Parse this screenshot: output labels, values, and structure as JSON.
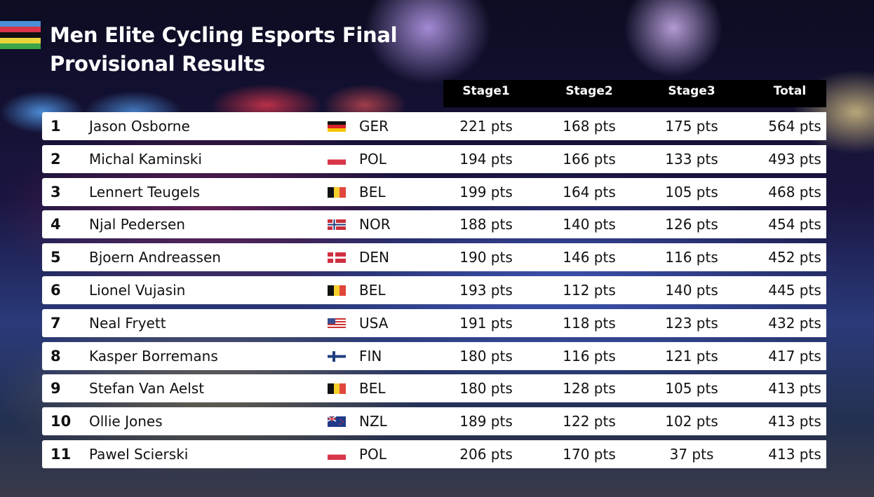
{
  "title_line1": "Men Elite Cycling Esports Final",
  "title_line2": "Provisional Results",
  "logo_colors": [
    "#4a8fd6",
    "#d8334a",
    "#111111",
    "#e8d53a",
    "#3aa54a"
  ],
  "columns": [
    "Stage1",
    "Stage2",
    "Stage3",
    "Total"
  ],
  "rows": [
    {
      "rank": "1",
      "name": "Jason Osborne",
      "flag": "germany-flag-icon",
      "country": "GER",
      "stage1": "221 pts",
      "stage2": "168 pts",
      "stage3": "175 pts",
      "total": "564 pts"
    },
    {
      "rank": "2",
      "name": "Michal Kaminski",
      "flag": "poland-flag-icon",
      "country": "POL",
      "stage1": "194 pts",
      "stage2": "166 pts",
      "stage3": "133 pts",
      "total": "493 pts"
    },
    {
      "rank": "3",
      "name": "Lennert Teugels",
      "flag": "belgium-flag-icon",
      "country": "BEL",
      "stage1": "199 pts",
      "stage2": "164 pts",
      "stage3": "105 pts",
      "total": "468 pts"
    },
    {
      "rank": "4",
      "name": "Njal Pedersen",
      "flag": "norway-flag-icon",
      "country": "NOR",
      "stage1": "188 pts",
      "stage2": "140 pts",
      "stage3": "126 pts",
      "total": "454 pts"
    },
    {
      "rank": "5",
      "name": "Bjoern Andreassen",
      "flag": "denmark-flag-icon",
      "country": "DEN",
      "stage1": "190 pts",
      "stage2": "146 pts",
      "stage3": "116 pts",
      "total": "452 pts"
    },
    {
      "rank": "6",
      "name": "Lionel Vujasin",
      "flag": "belgium-flag-icon",
      "country": "BEL",
      "stage1": "193 pts",
      "stage2": "112 pts",
      "stage3": "140 pts",
      "total": "445 pts"
    },
    {
      "rank": "7",
      "name": "Neal Fryett",
      "flag": "usa-flag-icon",
      "country": "USA",
      "stage1": "191 pts",
      "stage2": "118 pts",
      "stage3": "123 pts",
      "total": "432 pts"
    },
    {
      "rank": "8",
      "name": "Kasper Borremans",
      "flag": "finland-flag-icon",
      "country": "FIN",
      "stage1": "180 pts",
      "stage2": "116 pts",
      "stage3": "121 pts",
      "total": "417 pts"
    },
    {
      "rank": "9",
      "name": "Stefan Van Aelst",
      "flag": "belgium-flag-icon",
      "country": "BEL",
      "stage1": "180 pts",
      "stage2": "128 pts",
      "stage3": "105 pts",
      "total": "413 pts"
    },
    {
      "rank": "10",
      "name": "Ollie Jones",
      "flag": "new-zealand-flag-icon",
      "country": "NZL",
      "stage1": "189 pts",
      "stage2": "122 pts",
      "stage3": "102 pts",
      "total": "413 pts"
    },
    {
      "rank": "11",
      "name": "Pawel Scierski",
      "flag": "poland-flag-icon",
      "country": "POL",
      "stage1": "206 pts",
      "stage2": "170 pts",
      "stage3": "37 pts",
      "total": "413 pts"
    }
  ]
}
